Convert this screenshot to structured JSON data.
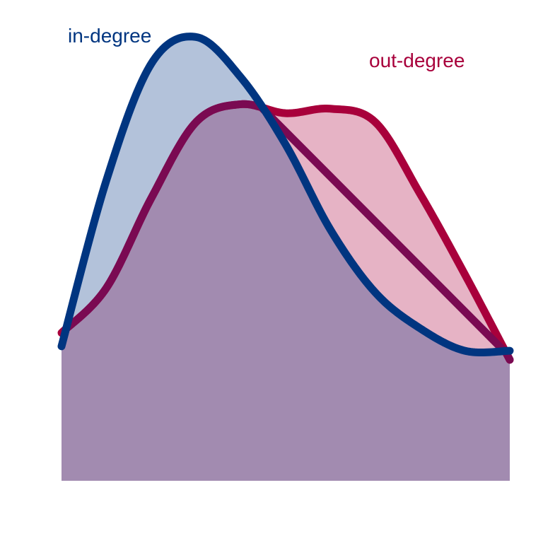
{
  "chart_data": {
    "type": "area",
    "title": "",
    "xlabel": "",
    "ylabel": "",
    "xlim": [
      0,
      1
    ],
    "ylim": [
      0,
      1
    ],
    "grid": false,
    "legend_placement": "inline",
    "x": [
      0.0,
      0.1,
      0.2,
      0.3,
      0.4,
      0.5,
      0.6,
      0.7,
      0.8,
      0.9,
      1.0
    ],
    "series": [
      {
        "name": "in-degree",
        "label": "in-degree",
        "color": "#003580",
        "fill": "#b3c2da",
        "values": [
          0.3,
          0.67,
          0.93,
          0.99,
          0.9,
          0.75,
          0.56,
          0.42,
          0.34,
          0.29,
          0.29
        ]
      },
      {
        "name": "out-degree",
        "label": "out-degree",
        "color": "#a8003b",
        "fill": "#e6b3c5",
        "values": [
          0.33,
          0.43,
          0.63,
          0.8,
          0.84,
          0.82,
          0.83,
          0.8,
          0.64,
          0.46,
          0.27
        ]
      }
    ]
  }
}
